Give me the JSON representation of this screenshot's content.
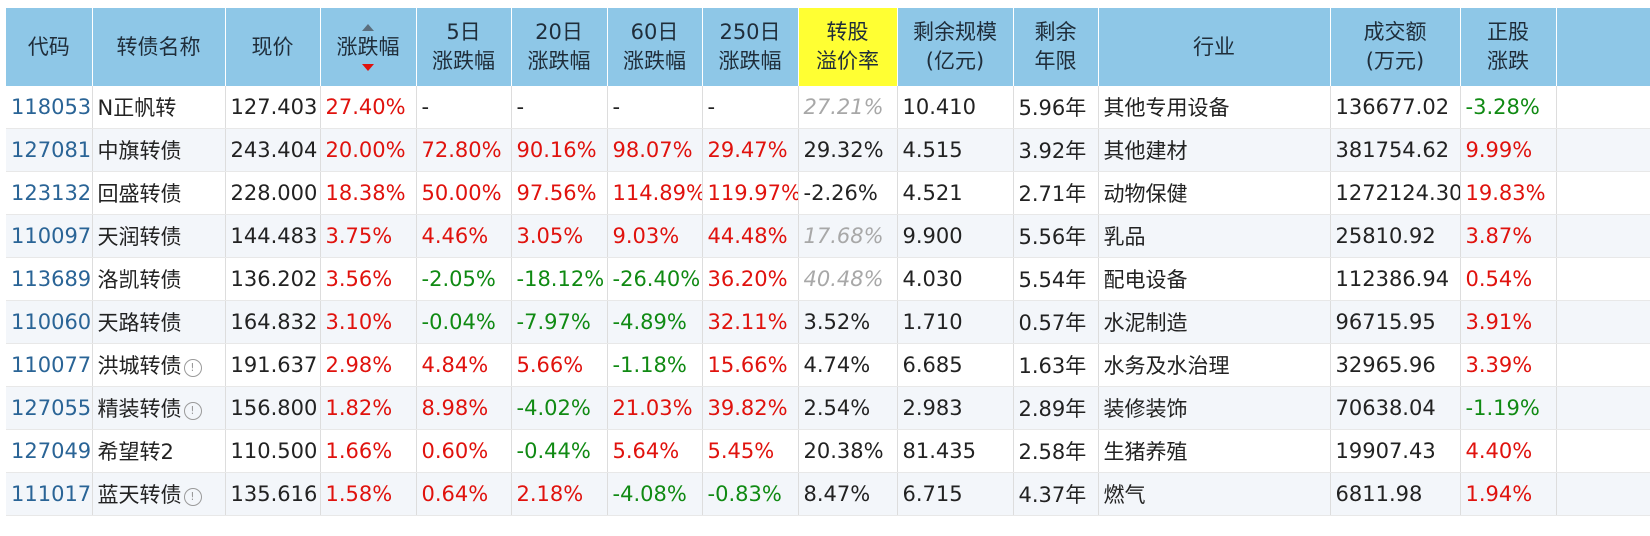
{
  "headers": {
    "code": "代码",
    "name": "转债名称",
    "price": "现价",
    "change": "涨跌幅",
    "d5": [
      "5日",
      "涨跌幅"
    ],
    "d20": [
      "20日",
      "涨跌幅"
    ],
    "d60": [
      "60日",
      "涨跌幅"
    ],
    "d250": [
      "250日",
      "涨跌幅"
    ],
    "premium": [
      "转股",
      "溢价率"
    ],
    "scale": [
      "剩余规模",
      "(亿元)"
    ],
    "years": [
      "剩余",
      "年限"
    ],
    "industry": "行业",
    "turnover": [
      "成交额",
      "(万元)"
    ],
    "stock": [
      "正股",
      "涨跌"
    ]
  },
  "rows": [
    {
      "code": "118053",
      "name": "N正帆转",
      "info": false,
      "price": "127.403",
      "change": "27.40%",
      "d5": "-",
      "d20": "-",
      "d60": "-",
      "d250": "-",
      "premium": "27.21%",
      "premium_style": "muted",
      "scale": "10.410",
      "years": "5.96年",
      "industry": "其他专用设备",
      "turnover": "136677.02",
      "stock": "-3.28%"
    },
    {
      "code": "127081",
      "name": "中旗转债",
      "info": false,
      "price": "243.404",
      "change": "20.00%",
      "d5": "72.80%",
      "d20": "90.16%",
      "d60": "98.07%",
      "d250": "29.47%",
      "premium": "29.32%",
      "premium_style": "",
      "scale": "4.515",
      "years": "3.92年",
      "industry": "其他建材",
      "turnover": "381754.62",
      "stock": "9.99%"
    },
    {
      "code": "123132",
      "name": "回盛转债",
      "info": false,
      "price": "228.000",
      "change": "18.38%",
      "d5": "50.00%",
      "d20": "97.56%",
      "d60": "114.89%",
      "d250": "119.97%",
      "premium": "-2.26%",
      "premium_style": "",
      "scale": "4.521",
      "years": "2.71年",
      "industry": "动物保健",
      "turnover": "1272124.30",
      "stock": "19.83%"
    },
    {
      "code": "110097",
      "name": "天润转债",
      "info": false,
      "price": "144.483",
      "change": "3.75%",
      "d5": "4.46%",
      "d20": "3.05%",
      "d60": "9.03%",
      "d250": "44.48%",
      "premium": "17.68%",
      "premium_style": "muted",
      "scale": "9.900",
      "years": "5.56年",
      "industry": "乳品",
      "turnover": "25810.92",
      "stock": "3.87%"
    },
    {
      "code": "113689",
      "name": "洛凯转债",
      "info": false,
      "price": "136.202",
      "change": "3.56%",
      "d5": "-2.05%",
      "d20": "-18.12%",
      "d60": "-26.40%",
      "d250": "36.20%",
      "premium": "40.48%",
      "premium_style": "muted",
      "scale": "4.030",
      "years": "5.54年",
      "industry": "配电设备",
      "turnover": "112386.94",
      "stock": "0.54%"
    },
    {
      "code": "110060",
      "name": "天路转债",
      "info": false,
      "price": "164.832",
      "change": "3.10%",
      "d5": "-0.04%",
      "d20": "-7.97%",
      "d60": "-4.89%",
      "d250": "32.11%",
      "premium": "3.52%",
      "premium_style": "",
      "scale": "1.710",
      "years": "0.57年",
      "industry": "水泥制造",
      "turnover": "96715.95",
      "stock": "3.91%"
    },
    {
      "code": "110077",
      "name": "洪城转债",
      "info": true,
      "price": "191.637",
      "change": "2.98%",
      "d5": "4.84%",
      "d20": "5.66%",
      "d60": "-1.18%",
      "d250": "15.66%",
      "premium": "4.74%",
      "premium_style": "",
      "scale": "6.685",
      "years": "1.63年",
      "industry": "水务及水治理",
      "turnover": "32965.96",
      "stock": "3.39%"
    },
    {
      "code": "127055",
      "name": "精装转债",
      "info": true,
      "price": "156.800",
      "change": "1.82%",
      "d5": "8.98%",
      "d20": "-4.02%",
      "d60": "21.03%",
      "d250": "39.82%",
      "premium": "2.54%",
      "premium_style": "",
      "scale": "2.983",
      "years": "2.89年",
      "industry": "装修装饰",
      "turnover": "70638.04",
      "stock": "-1.19%"
    },
    {
      "code": "127049",
      "name": "希望转2",
      "info": false,
      "price": "110.500",
      "change": "1.66%",
      "d5": "0.60%",
      "d20": "-0.44%",
      "d60": "5.64%",
      "d250": "5.45%",
      "premium": "20.38%",
      "premium_style": "",
      "scale": "81.435",
      "years": "2.58年",
      "industry": "生猪养殖",
      "turnover": "19907.43",
      "stock": "4.40%"
    },
    {
      "code": "111017",
      "name": "蓝天转债",
      "info": true,
      "price": "135.616",
      "change": "1.58%",
      "d5": "0.64%",
      "d20": "2.18%",
      "d60": "-4.08%",
      "d250": "-0.83%",
      "premium": "8.47%",
      "premium_style": "",
      "scale": "6.715",
      "years": "4.37年",
      "industry": "燃气",
      "turnover": "6811.98",
      "stock": "1.94%"
    }
  ],
  "colors": {
    "header_bg": "#8ec7e7",
    "highlight": "#ffff33",
    "up": "#e0120d",
    "down": "#108a13",
    "code_link": "#2a6496"
  }
}
